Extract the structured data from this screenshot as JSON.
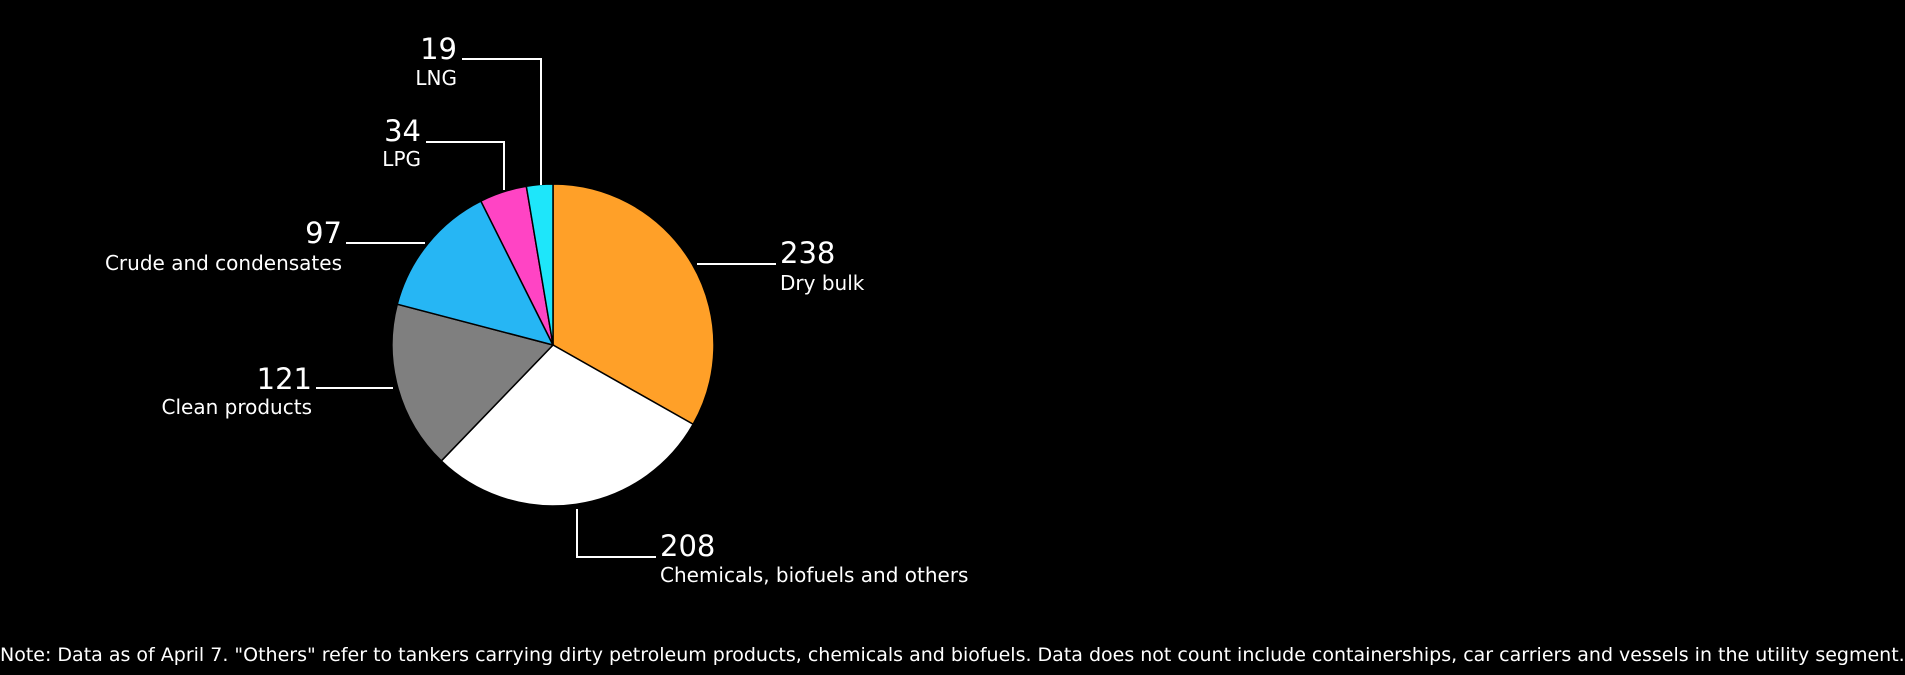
{
  "chart_data": {
    "type": "pie",
    "start_angle_deg": 0,
    "direction": "clockwise",
    "slices": [
      {
        "label": "Dry bulk",
        "value": 238,
        "color": "#ffa028"
      },
      {
        "label": "Chemicals, biofuels and others",
        "value": 208,
        "color": "#ffffff"
      },
      {
        "label": "Clean products",
        "value": 121,
        "color": "#7f7f7f"
      },
      {
        "label": "Crude and condensates",
        "value": 97,
        "color": "#26b6f4"
      },
      {
        "label": "LPG",
        "value": 34,
        "color": "#ff44c4"
      },
      {
        "label": "LNG",
        "value": 19,
        "color": "#1ee6fa"
      }
    ],
    "edge_color": "#000000"
  },
  "note": "Note: Data as of April 7. \"Others\" refer to tankers carrying dirty petroleum products, chemicals and biofuels. Data does not count include containerships, car carriers and vessels in the utility segment."
}
